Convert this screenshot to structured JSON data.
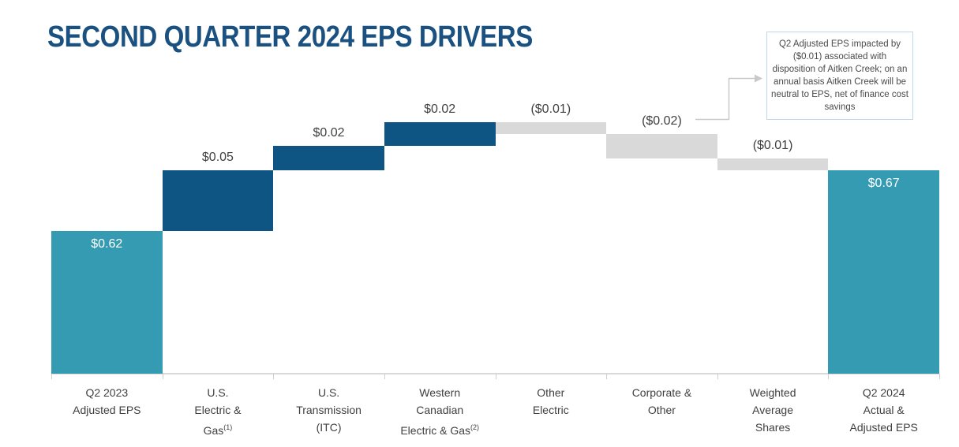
{
  "page": {
    "title": "SECOND QUARTER 2024 EPS DRIVERS"
  },
  "chart_data": {
    "type": "bar",
    "subtype": "waterfall",
    "title": "SECOND QUARTER 2024 EPS DRIVERS",
    "unit": "dollars per share (EPS)",
    "legend": "none",
    "grid": "off",
    "y_axis_visible": false,
    "ylim": [
      0.5,
      0.73
    ],
    "axis_note": "vertical axis truncated; does not start at $0",
    "categories": [
      "Q2 2023 Adjusted EPS",
      "U.S. Electric & Gas (1)",
      "U.S. Transmission (ITC)",
      "Western Canadian Electric & Gas (2)",
      "Other Electric",
      "Corporate & Other",
      "Weighted Average Shares",
      "Q2 2024 Actual & Adjusted EPS"
    ],
    "bars": [
      {
        "value": 0.62,
        "display": "$0.62",
        "role": "total",
        "label_position": "inside",
        "category_lines": [
          "Q2 2023",
          "Adjusted EPS"
        ]
      },
      {
        "value": 0.05,
        "display": "$0.05",
        "role": "increase",
        "label_position": "above",
        "category_lines": [
          "U.S.",
          "Electric &",
          {
            "text": "Gas",
            "sup": "(1)"
          }
        ]
      },
      {
        "value": 0.02,
        "display": "$0.02",
        "role": "increase",
        "label_position": "above",
        "category_lines": [
          "U.S.",
          "Transmission",
          "(ITC)"
        ]
      },
      {
        "value": 0.02,
        "display": "$0.02",
        "role": "increase",
        "label_position": "above",
        "category_lines": [
          "Western",
          "Canadian",
          {
            "text": "Electric & Gas",
            "sup": "(2)"
          }
        ]
      },
      {
        "value": -0.01,
        "display": "($0.01)",
        "role": "decrease",
        "label_position": "above",
        "category_lines": [
          "Other",
          "Electric"
        ]
      },
      {
        "value": -0.02,
        "display": "($0.02)",
        "role": "decrease",
        "label_position": "above",
        "category_lines": [
          "Corporate &",
          "Other"
        ]
      },
      {
        "value": -0.01,
        "display": "($0.01)",
        "role": "decrease",
        "label_position": "above",
        "category_lines": [
          "Weighted",
          "Average",
          "Shares"
        ]
      },
      {
        "value": 0.67,
        "display": "$0.67",
        "role": "total",
        "label_position": "inside",
        "category_lines": [
          "Q2 2024",
          "Actual &",
          "Adjusted EPS"
        ]
      }
    ],
    "colors": {
      "total": "#349BB2",
      "increase": "#0E5584",
      "decrease": "#D9D9D9",
      "title": "#1A5180",
      "label_dark": "#404040",
      "label_light": "#FFFFFF",
      "axis": "#D9D9D9",
      "callout_border": "#BDD7EE",
      "arrow": "#C9C9C9"
    },
    "annotation": {
      "text": "Q2 Adjusted EPS impacted by ($0.01) associated with disposition of Aitken Creek; on an annual basis Aitken Creek will be neutral to EPS, net of finance cost savings",
      "points_to": "Corporate & Other ($0.02) bar"
    }
  }
}
